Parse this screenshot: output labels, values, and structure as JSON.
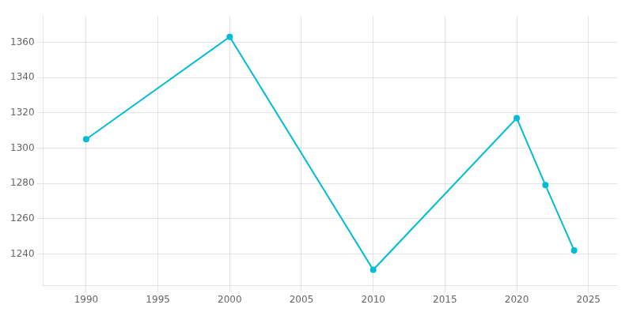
{
  "chart_data": {
    "type": "line",
    "x": [
      1990,
      2000,
      2010,
      2020,
      2022,
      2024
    ],
    "values": [
      1305,
      1363,
      1231,
      1317,
      1279,
      1242
    ],
    "color": "#00BCD4",
    "marker": "circle",
    "xlim": [
      1987,
      2027
    ],
    "ylim": [
      1222,
      1375
    ],
    "xticks": [
      1990,
      1995,
      2000,
      2005,
      2010,
      2015,
      2020,
      2025
    ],
    "yticks": [
      1240,
      1260,
      1280,
      1300,
      1320,
      1340,
      1360
    ],
    "grid": true
  }
}
